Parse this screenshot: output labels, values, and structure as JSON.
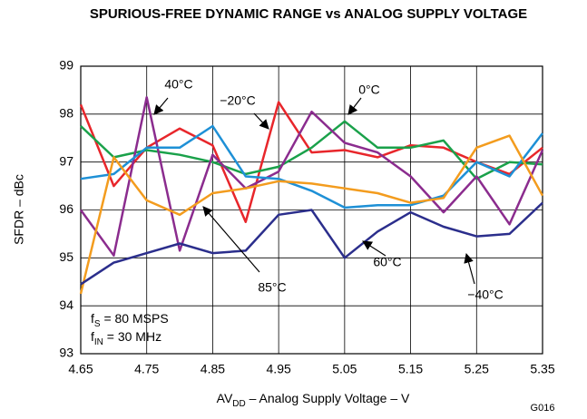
{
  "chart_data": {
    "type": "line",
    "title": "SPURIOUS-FREE DYNAMIC RANGE vs ANALOG SUPPLY VOLTAGE",
    "x_label_parts": [
      "AV",
      "DD",
      " – Analog Supply Voltage – V"
    ],
    "y_label": "SFDR – dBc",
    "figure_id": "G016",
    "conditions": [
      [
        "f",
        "S",
        " = 80 MSPS"
      ],
      [
        "f",
        "IN",
        " = 30 MHz"
      ]
    ],
    "x": [
      4.65,
      4.7,
      4.75,
      4.8,
      4.85,
      4.9,
      4.95,
      5.0,
      5.05,
      5.1,
      5.15,
      5.2,
      5.25,
      5.3,
      5.35
    ],
    "xlim": [
      4.65,
      5.35
    ],
    "xticks": [
      4.65,
      4.75,
      4.85,
      4.95,
      5.05,
      5.15,
      5.25,
      5.35
    ],
    "ylim": [
      93,
      99
    ],
    "yticks": [
      93,
      94,
      95,
      96,
      97,
      98,
      99
    ],
    "grid": true,
    "series": [
      {
        "name": "−20°C",
        "color": "#e8262b",
        "values": [
          98.2,
          96.5,
          97.3,
          97.7,
          97.35,
          95.75,
          98.25,
          97.2,
          97.25,
          97.1,
          97.35,
          97.3,
          97.0,
          96.75,
          97.3
        ]
      },
      {
        "name": "0°C",
        "color": "#1aa14a",
        "values": [
          97.75,
          97.1,
          97.25,
          97.15,
          97.0,
          96.75,
          96.9,
          97.3,
          97.85,
          97.3,
          97.3,
          97.45,
          96.65,
          97.0,
          96.95
        ]
      },
      {
        "name": "40°C",
        "color": "#8b2c8e",
        "values": [
          96.0,
          95.05,
          98.35,
          95.15,
          97.15,
          96.45,
          96.8,
          98.05,
          97.4,
          97.2,
          96.7,
          95.95,
          96.7,
          95.7,
          97.25
        ]
      },
      {
        "name": "60°C",
        "color": "#1e90d6",
        "values": [
          96.65,
          96.75,
          97.3,
          97.3,
          97.75,
          96.7,
          96.65,
          96.4,
          96.05,
          96.1,
          96.1,
          96.3,
          97.0,
          96.7,
          97.6
        ]
      },
      {
        "name": "85°C",
        "color": "#f39c1e",
        "values": [
          94.25,
          97.1,
          96.2,
          95.9,
          96.35,
          96.45,
          96.6,
          96.55,
          96.45,
          96.35,
          96.15,
          96.25,
          97.3,
          97.55,
          96.3
        ]
      },
      {
        "name": "−40°C",
        "color": "#2b2e8c",
        "values": [
          94.45,
          94.9,
          95.1,
          95.3,
          95.1,
          95.15,
          95.9,
          96.0,
          95.0,
          95.55,
          95.95,
          95.65,
          95.45,
          95.5,
          96.15
        ]
      }
    ]
  }
}
